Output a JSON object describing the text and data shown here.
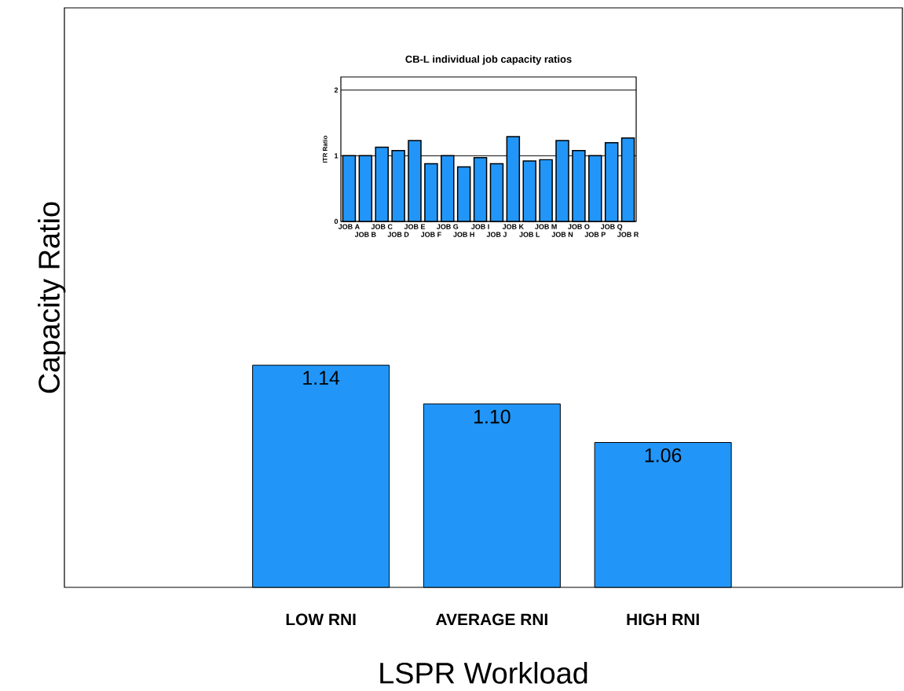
{
  "chart_data": [
    {
      "type": "bar",
      "title": "CB-L individual job capacity ratios",
      "ylabel": "ITR Ratio",
      "categories": [
        "JOB A",
        "JOB B",
        "JOB C",
        "JOB D",
        "JOB E",
        "JOB F",
        "JOB G",
        "JOB H",
        "JOB I",
        "JOB J",
        "JOB K",
        "JOB L",
        "JOB M",
        "JOB N",
        "JOB O",
        "JOB P",
        "JOB Q",
        "JOB R"
      ],
      "values": [
        1.0,
        1.0,
        1.13,
        1.08,
        1.23,
        0.88,
        1.0,
        0.83,
        0.97,
        0.88,
        1.29,
        0.92,
        0.94,
        1.23,
        1.08,
        1.0,
        1.2,
        1.27
      ],
      "color": "#2196f8",
      "ylim": [
        0,
        2.2
      ],
      "yticks": [
        0,
        1,
        2
      ],
      "grid": "y"
    },
    {
      "type": "bar",
      "xlabel": "LSPR Workload",
      "ylabel": "Capacity Ratio",
      "categories": [
        "LOW RNI",
        "AVERAGE RNI",
        "HIGH RNI"
      ],
      "values": [
        1.14,
        1.1,
        1.06
      ],
      "value_labels": [
        "1.14",
        "1.10",
        "1.06"
      ],
      "color": "#2196f8",
      "ylim": [
        0.91,
        1.51
      ],
      "tick_labels": "x"
    }
  ]
}
